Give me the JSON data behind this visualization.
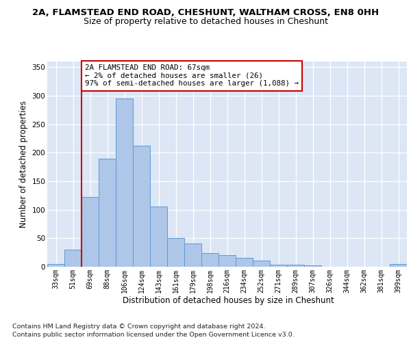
{
  "title_line1": "2A, FLAMSTEAD END ROAD, CHESHUNT, WALTHAM CROSS, EN8 0HH",
  "title_line2": "Size of property relative to detached houses in Cheshunt",
  "xlabel": "Distribution of detached houses by size in Cheshunt",
  "ylabel": "Number of detached properties",
  "categories": [
    "33sqm",
    "51sqm",
    "69sqm",
    "88sqm",
    "106sqm",
    "124sqm",
    "143sqm",
    "161sqm",
    "179sqm",
    "198sqm",
    "216sqm",
    "234sqm",
    "252sqm",
    "271sqm",
    "289sqm",
    "307sqm",
    "326sqm",
    "344sqm",
    "362sqm",
    "381sqm",
    "399sqm"
  ],
  "bar_values": [
    5,
    30,
    122,
    190,
    295,
    213,
    106,
    50,
    41,
    24,
    20,
    16,
    11,
    4,
    4,
    3,
    0,
    0,
    0,
    0,
    5
  ],
  "bar_color": "#aec6e8",
  "bar_edge_color": "#5b9bd5",
  "vline_x_index": 1.5,
  "vline_color": "#cc0000",
  "annotation_text": "2A FLAMSTEAD END ROAD: 67sqm\n← 2% of detached houses are smaller (26)\n97% of semi-detached houses are larger (1,088) →",
  "annotation_box_color": "#cc0000",
  "ylim": [
    0,
    360
  ],
  "yticks": [
    0,
    50,
    100,
    150,
    200,
    250,
    300,
    350
  ],
  "background_color": "#dce6f5",
  "footer_line1": "Contains HM Land Registry data © Crown copyright and database right 2024.",
  "footer_line2": "Contains public sector information licensed under the Open Government Licence v3.0.",
  "title_fontsize": 9.5,
  "subtitle_fontsize": 9,
  "tick_fontsize": 7,
  "ylabel_fontsize": 8.5,
  "xlabel_fontsize": 8.5,
  "footer_fontsize": 6.8
}
